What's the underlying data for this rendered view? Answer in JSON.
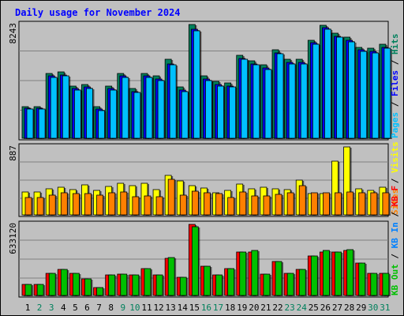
{
  "title": "Daily usage for November 2024",
  "colors": {
    "title": "#0000ff",
    "hits": "#00805c",
    "files": "#0000ff",
    "pages": "#00c0ff",
    "visits": "#ffff00",
    "sites": "#ff8000",
    "kbin": "#0080ff",
    "kbout": "#00c000",
    "kbf": "#ff0000",
    "weekday": "#000000",
    "weekend": "#00805c",
    "separator": "#000000"
  },
  "chart_data": [
    {
      "type": "bar",
      "title": "Daily usage for November 2024",
      "categories": [
        "1",
        "2",
        "3",
        "4",
        "5",
        "6",
        "7",
        "8",
        "9",
        "10",
        "11",
        "12",
        "13",
        "14",
        "15",
        "16",
        "17",
        "18",
        "19",
        "20",
        "21",
        "22",
        "23",
        "24",
        "25",
        "26",
        "27",
        "28",
        "29",
        "30",
        "31"
      ],
      "weekend_days": [
        "2",
        "3",
        "9",
        "10",
        "16",
        "17",
        "23",
        "24",
        "30",
        "31"
      ],
      "axis_max_label": "8243",
      "ylim": [
        0,
        8243
      ],
      "legend": [
        "Pages",
        "Files",
        "Hits"
      ],
      "series": [
        {
          "name": "Hits",
          "color": "#00805c",
          "values": [
            2300,
            2300,
            4700,
            4800,
            3800,
            3900,
            2300,
            3800,
            4700,
            3600,
            4700,
            4500,
            5700,
            3700,
            8243,
            4500,
            4100,
            4000,
            6000,
            5600,
            5300,
            6400,
            5700,
            5700,
            7100,
            8200,
            7600,
            7300,
            6600,
            6500,
            6800
          ]
        },
        {
          "name": "Files",
          "color": "#0000ff",
          "values": [
            2200,
            2200,
            4500,
            4600,
            3600,
            3700,
            2100,
            3600,
            4500,
            3400,
            4500,
            4300,
            5400,
            3500,
            7900,
            4300,
            3900,
            3800,
            5800,
            5400,
            5100,
            6200,
            5500,
            5500,
            6900,
            8000,
            7400,
            7100,
            6400,
            6300,
            6600
          ]
        },
        {
          "name": "Pages",
          "color": "#00c0ff",
          "values": [
            2100,
            2100,
            4400,
            4500,
            3500,
            3600,
            2000,
            3500,
            4400,
            3300,
            4400,
            4200,
            5300,
            3400,
            7800,
            4200,
            3800,
            3700,
            5700,
            5300,
            5000,
            6100,
            5400,
            5400,
            6800,
            7900,
            7300,
            7000,
            6300,
            6200,
            6500
          ]
        }
      ]
    },
    {
      "type": "bar",
      "categories": [
        "1",
        "2",
        "3",
        "4",
        "5",
        "6",
        "7",
        "8",
        "9",
        "10",
        "11",
        "12",
        "13",
        "14",
        "15",
        "16",
        "17",
        "18",
        "19",
        "20",
        "21",
        "22",
        "23",
        "24",
        "25",
        "26",
        "27",
        "28",
        "29",
        "30",
        "31"
      ],
      "axis_max_label": "887",
      "ylim": [
        0,
        887
      ],
      "legend": [
        "Sites",
        "Visits"
      ],
      "series": [
        {
          "name": "Visits",
          "color": "#ffff00",
          "values": [
            300,
            300,
            340,
            360,
            330,
            390,
            320,
            370,
            410,
            380,
            410,
            330,
            520,
            440,
            380,
            350,
            290,
            320,
            400,
            340,
            360,
            340,
            330,
            450,
            280,
            280,
            700,
            887,
            340,
            320,
            360
          ]
        },
        {
          "name": "Sites",
          "color": "#ff8000",
          "values": [
            230,
            230,
            260,
            290,
            280,
            280,
            260,
            290,
            300,
            240,
            250,
            240,
            460,
            260,
            310,
            290,
            280,
            230,
            300,
            250,
            250,
            270,
            290,
            380,
            290,
            290,
            290,
            300,
            290,
            290,
            290
          ]
        }
      ]
    },
    {
      "type": "bar",
      "categories": [
        "1",
        "2",
        "3",
        "4",
        "5",
        "6",
        "7",
        "8",
        "9",
        "10",
        "11",
        "12",
        "13",
        "14",
        "15",
        "16",
        "17",
        "18",
        "19",
        "20",
        "21",
        "22",
        "23",
        "24",
        "25",
        "26",
        "27",
        "28",
        "29",
        "30",
        "31"
      ],
      "axis_max_label": "633120",
      "ylim": [
        0,
        633120
      ],
      "legend": [
        "KB F",
        "KB In",
        "KB Out"
      ],
      "series": [
        {
          "name": "KB F",
          "color": "#ff0000",
          "values": [
            100000,
            100000,
            200000,
            230000,
            200000,
            150000,
            70000,
            180000,
            190000,
            180000,
            240000,
            180000,
            330000,
            160000,
            633120,
            260000,
            180000,
            240000,
            390000,
            390000,
            190000,
            300000,
            200000,
            230000,
            350000,
            390000,
            390000,
            400000,
            290000,
            200000,
            200000
          ]
        },
        {
          "name": "KB In",
          "color": "#0080ff",
          "values": [
            0,
            0,
            0,
            0,
            0,
            0,
            0,
            0,
            0,
            0,
            0,
            0,
            0,
            0,
            0,
            0,
            0,
            0,
            0,
            0,
            0,
            0,
            0,
            0,
            0,
            0,
            0,
            0,
            0,
            0,
            0
          ]
        },
        {
          "name": "KB Out",
          "color": "#00c000",
          "values": [
            100000,
            100000,
            200000,
            230000,
            200000,
            150000,
            70000,
            180000,
            190000,
            180000,
            240000,
            180000,
            340000,
            160000,
            610000,
            260000,
            180000,
            240000,
            390000,
            400000,
            190000,
            300000,
            200000,
            230000,
            350000,
            400000,
            390000,
            410000,
            290000,
            200000,
            200000
          ]
        }
      ]
    }
  ]
}
